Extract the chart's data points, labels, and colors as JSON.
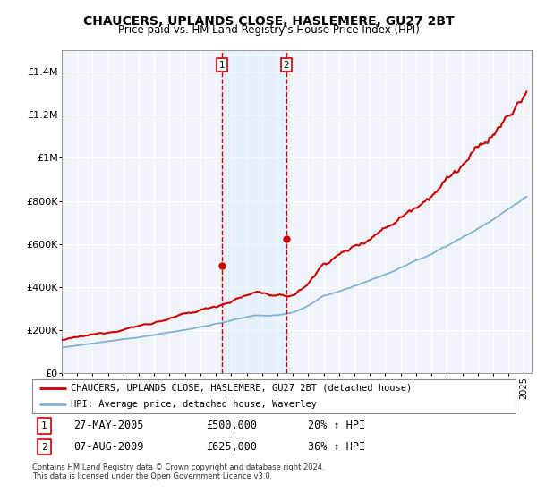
{
  "title": "CHAUCERS, UPLANDS CLOSE, HASLEMERE, GU27 2BT",
  "subtitle": "Price paid vs. HM Land Registry's House Price Index (HPI)",
  "legend_line1": "CHAUCERS, UPLANDS CLOSE, HASLEMERE, GU27 2BT (detached house)",
  "legend_line2": "HPI: Average price, detached house, Waverley",
  "purchase1_date": "27-MAY-2005",
  "purchase1_price": 500000,
  "purchase1_hpi": "20% ↑ HPI",
  "purchase1_year": 2005.38,
  "purchase2_date": "07-AUG-2009",
  "purchase2_price": 625000,
  "purchase2_hpi": "36% ↑ HPI",
  "purchase2_year": 2009.58,
  "footer": "Contains HM Land Registry data © Crown copyright and database right 2024.\nThis data is licensed under the Open Government Licence v3.0.",
  "red_color": "#cc0000",
  "blue_color": "#7fb3d3",
  "shade_color": "#ddeeff",
  "ylim": [
    0,
    1500000
  ],
  "xlim_start": 1995,
  "xlim_end": 2025.5
}
